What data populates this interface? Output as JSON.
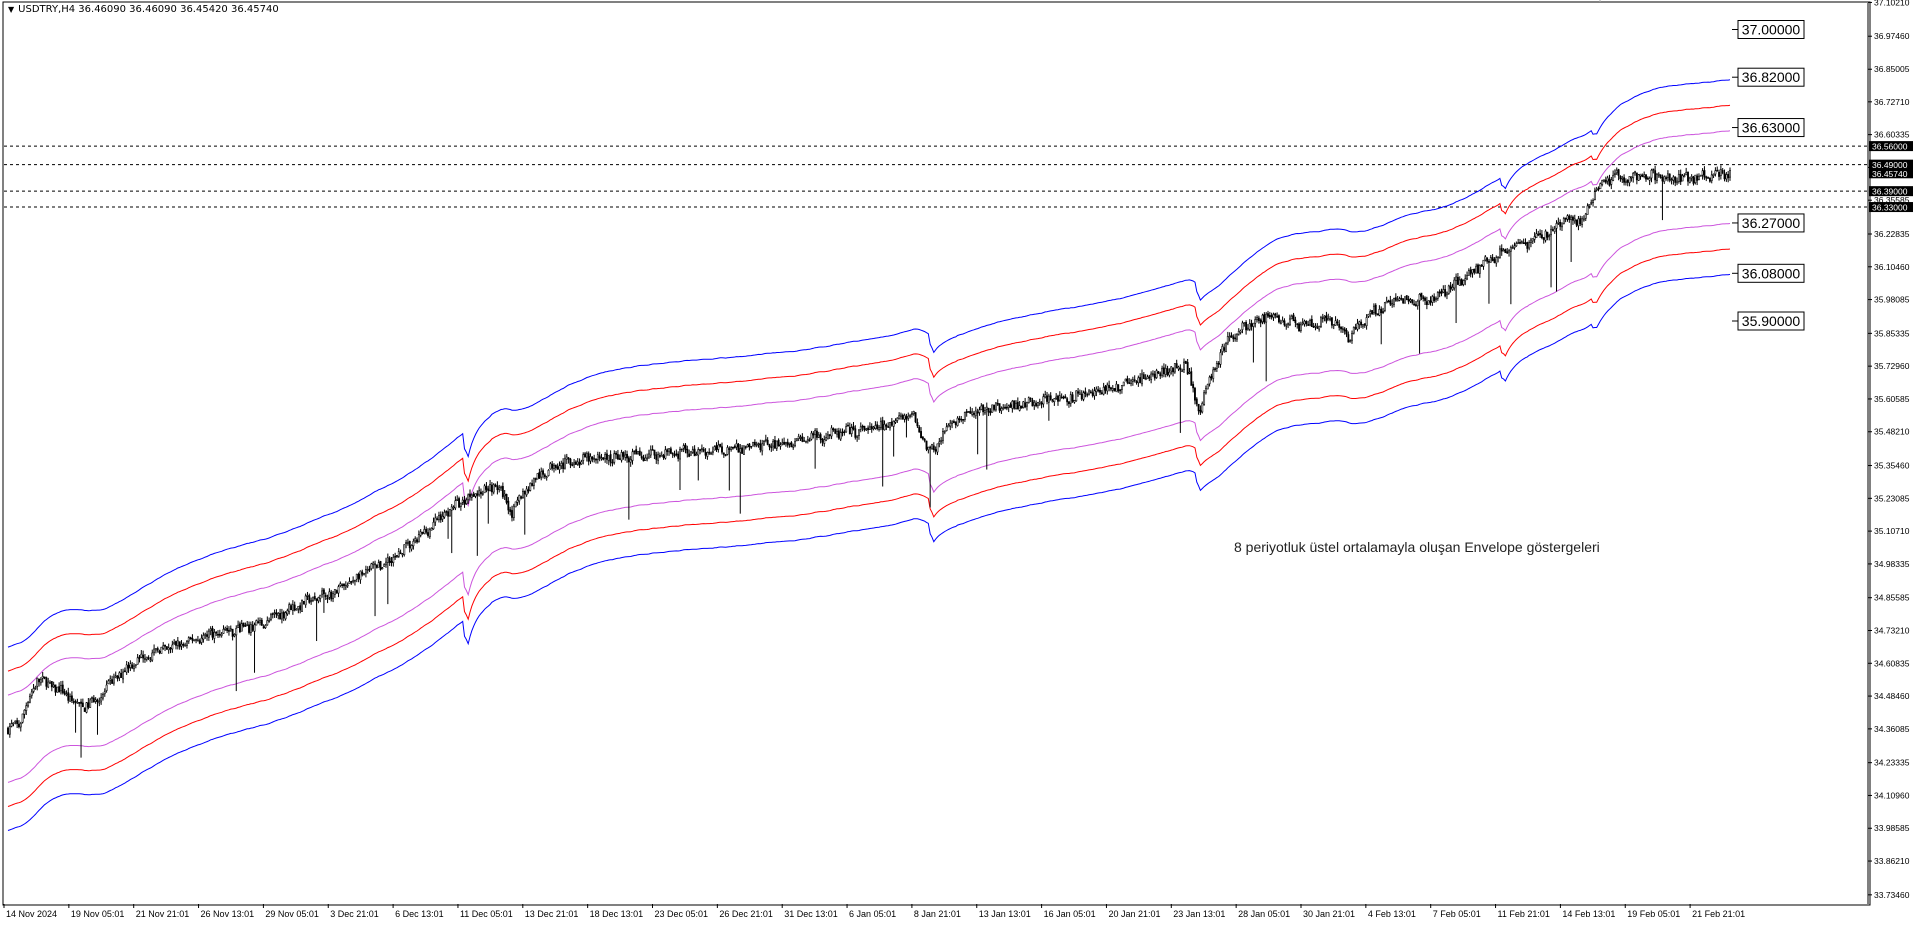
{
  "window": {
    "symbol_header": "USDTRY,H4  36.46090 36.46090 36.45420 36.45740"
  },
  "annotation": "8 periyotluk üstel ortalamayla oluşan Envelope göstergeleri",
  "colors": {
    "background": "#ffffff",
    "candles": "#000000",
    "envelope_outer": "#0000ff",
    "envelope_middle": "#ff0000",
    "envelope_inner": "#cc55dd",
    "hline": "#000000"
  },
  "chart_data": {
    "type": "candlestick",
    "title": "",
    "symbol": "USDTRY",
    "timeframe": "H4",
    "ylim": [
      33.7,
      37.1
    ],
    "y_tick_labels": [
      "37.10210",
      "36.97460",
      "36.85005",
      "36.72710",
      "36.60335",
      "36.47960",
      "36.35585",
      "36.22835",
      "36.10460",
      "35.98085",
      "35.85335",
      "35.72960",
      "35.60585",
      "35.48210",
      "35.35460",
      "35.23085",
      "35.10710",
      "34.98335",
      "34.85585",
      "34.73210",
      "34.60835",
      "34.48460",
      "34.36085",
      "34.23335",
      "34.10960",
      "33.98585",
      "33.86210",
      "33.73460"
    ],
    "x_tick_labels": [
      "14 Nov 2024",
      "19 Nov 05:01",
      "21 Nov 21:01",
      "26 Nov 13:01",
      "29 Nov 05:01",
      "3 Dec 21:01",
      "6 Dec 13:01",
      "11 Dec 05:01",
      "13 Dec 21:01",
      "18 Dec 13:01",
      "23 Dec 05:01",
      "26 Dec 21:01",
      "31 Dec 13:01",
      "6 Jan 05:01",
      "8 Jan 21:01",
      "13 Jan 13:01",
      "16 Jan 05:01",
      "20 Jan 21:01",
      "23 Jan 13:01",
      "28 Jan 05:01",
      "30 Jan 21:01",
      "4 Feb 13:01",
      "7 Feb 05:01",
      "11 Feb 21:01",
      "14 Feb 13:01",
      "19 Feb 05:01",
      "21 Feb 21:01"
    ],
    "hlines": [
      {
        "value": 36.56,
        "label": "36.56000"
      },
      {
        "value": 36.49,
        "label": "36.49000"
      },
      {
        "value": 36.39,
        "label": "36.39000"
      },
      {
        "value": 36.33,
        "label": "36.33000"
      }
    ],
    "current_price": {
      "value": 36.4574,
      "label": "36.45740"
    },
    "envelope_labels": [
      {
        "value": 37.0,
        "label": "37.00000",
        "band": "outer_upper"
      },
      {
        "value": 36.82,
        "label": "36.82000",
        "band": "middle_upper"
      },
      {
        "value": 36.63,
        "label": "36.63000",
        "band": "inner_upper"
      },
      {
        "value": 36.27,
        "label": "36.27000",
        "band": "inner_lower"
      },
      {
        "value": 36.08,
        "label": "36.08000",
        "band": "middle_lower"
      },
      {
        "value": 35.9,
        "label": "35.90000",
        "band": "outer_lower"
      }
    ],
    "envelope_offsets_pct": {
      "outer": 0.5,
      "middle": 0.25,
      "inner": 0.15
    },
    "close_path": [
      [
        0,
        34.36
      ],
      [
        6,
        34.38
      ],
      [
        16,
        34.55
      ],
      [
        30,
        34.5
      ],
      [
        40,
        34.44
      ],
      [
        50,
        34.48
      ],
      [
        60,
        34.56
      ],
      [
        70,
        34.62
      ],
      [
        80,
        34.65
      ],
      [
        90,
        34.67
      ],
      [
        100,
        34.69
      ],
      [
        110,
        34.72
      ],
      [
        120,
        34.73
      ],
      [
        130,
        34.74
      ],
      [
        140,
        34.76
      ],
      [
        150,
        34.8
      ],
      [
        160,
        34.83
      ],
      [
        170,
        34.86
      ],
      [
        180,
        34.88
      ],
      [
        195,
        34.95
      ],
      [
        210,
        35.0
      ],
      [
        225,
        35.08
      ],
      [
        240,
        35.18
      ],
      [
        255,
        35.25
      ],
      [
        268,
        35.28
      ],
      [
        276,
        35.18
      ],
      [
        285,
        35.28
      ],
      [
        300,
        35.36
      ],
      [
        320,
        35.38
      ],
      [
        340,
        35.39
      ],
      [
        360,
        35.4
      ],
      [
        380,
        35.41
      ],
      [
        400,
        35.42
      ],
      [
        420,
        35.44
      ],
      [
        440,
        35.46
      ],
      [
        460,
        35.48
      ],
      [
        480,
        35.5
      ],
      [
        495,
        35.55
      ],
      [
        505,
        35.4
      ],
      [
        515,
        35.5
      ],
      [
        530,
        35.56
      ],
      [
        550,
        35.58
      ],
      [
        570,
        35.6
      ],
      [
        590,
        35.62
      ],
      [
        610,
        35.66
      ],
      [
        630,
        35.7
      ],
      [
        645,
        35.74
      ],
      [
        652,
        35.55
      ],
      [
        660,
        35.72
      ],
      [
        670,
        35.85
      ],
      [
        690,
        35.92
      ],
      [
        710,
        35.88
      ],
      [
        725,
        35.9
      ],
      [
        735,
        35.84
      ],
      [
        745,
        35.92
      ],
      [
        760,
        35.98
      ],
      [
        780,
        35.98
      ],
      [
        800,
        36.08
      ],
      [
        815,
        36.15
      ],
      [
        830,
        36.19
      ],
      [
        845,
        36.24
      ],
      [
        855,
        36.29
      ],
      [
        862,
        36.27
      ],
      [
        870,
        36.4
      ],
      [
        880,
        36.45
      ],
      [
        890,
        36.44
      ],
      [
        900,
        36.45
      ],
      [
        910,
        36.44
      ],
      [
        920,
        36.44
      ],
      [
        930,
        36.45
      ],
      [
        943,
        36.46
      ]
    ],
    "band_dips": [
      [
        252,
        0.1
      ],
      [
        507,
        0.06
      ],
      [
        653,
        0.05
      ],
      [
        820,
        0.05
      ],
      [
        870,
        0.03
      ]
    ]
  }
}
